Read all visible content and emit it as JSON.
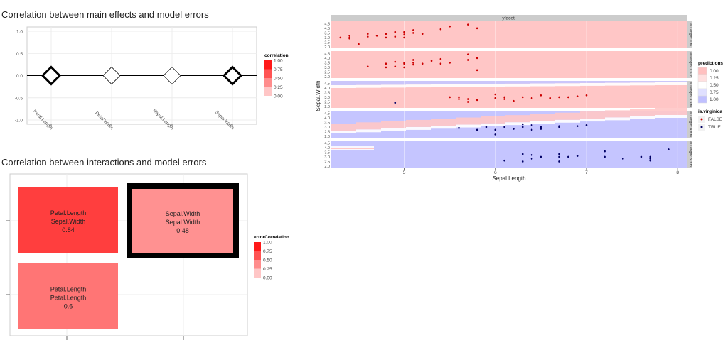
{
  "chart_data": [
    {
      "type": "scatter",
      "title": "Correlation between main effects and model errors",
      "categories": [
        "Petal.Length",
        "Petal.Width",
        "Sepal.Length",
        "Sepal.Width"
      ],
      "values": [
        0,
        0,
        0,
        0
      ],
      "correlation": [
        0.9,
        0.05,
        0.05,
        0.9
      ],
      "ylim": [
        -1,
        1
      ],
      "yticks": [
        "1.0",
        "0.5",
        "0.0",
        "-0.5",
        "-1.0"
      ],
      "legend": {
        "title": "correlation",
        "ticks": [
          "1.00",
          "0.75",
          "0.50",
          "0.25",
          "0.00"
        ],
        "placement": "right"
      }
    },
    {
      "type": "heatmap",
      "title": "Correlation between interactions and model errors",
      "cells": [
        {
          "line1": "Petal.Length",
          "line2": "Sepal.Width",
          "value": "0.84",
          "corr": 0.84,
          "highlight": false
        },
        {
          "line1": "Sepal.Width",
          "line2": "Sepal.Width",
          "value": "0.48",
          "corr": 0.48,
          "highlight": true
        },
        {
          "line1": "Petal.Length",
          "line2": "Petal.Length",
          "value": "0.6",
          "corr": 0.6,
          "highlight": false
        }
      ],
      "legend": {
        "title": "errorCorrelation",
        "ticks": [
          "1.00",
          "0.75",
          "0.50",
          "0.25",
          "0.00"
        ],
        "placement": "right"
      }
    },
    {
      "type": "scatter",
      "facet_title": "yfacet:",
      "xlabel": "Sepal.Length",
      "ylabel": "Sepal.Width",
      "xlim": [
        4.2,
        8.1
      ],
      "xticks": [
        "5",
        "6",
        "7",
        "8"
      ],
      "yticks": [
        "4.5",
        "4.0",
        "3.5",
        "3.0",
        "2.5",
        "2.0"
      ],
      "ylim": [
        2.0,
        4.6
      ],
      "strips": [
        "al.Length: 1 to",
        "al.Length: 1.5 to",
        "al.Length: 3.9 to",
        "al.Length: 4.8 to",
        "al.Length: 5.3 to"
      ],
      "legend_predictions": {
        "title": "predictions",
        "ticks": [
          "0.00",
          "0.25",
          "0.50",
          "0.75",
          "1.00"
        ]
      },
      "legend_points": {
        "title": "is.virginica",
        "items": [
          "FALSE",
          "TRUE"
        ]
      },
      "facets": [
        {
          "prediction": "low",
          "points": [
            [
              4.3,
              3.0
            ],
            [
              4.4,
              2.9
            ],
            [
              4.4,
              3.0
            ],
            [
              4.4,
              3.2
            ],
            [
              4.5,
              2.3
            ],
            [
              4.6,
              3.1
            ],
            [
              4.6,
              3.4
            ],
            [
              4.7,
              3.2
            ],
            [
              4.8,
              3.0
            ],
            [
              4.8,
              3.4
            ],
            [
              4.9,
              3.1
            ],
            [
              4.9,
              3.6
            ],
            [
              5.0,
              3.0
            ],
            [
              5.0,
              3.3
            ],
            [
              5.0,
              3.5
            ],
            [
              5.0,
              3.6
            ],
            [
              5.1,
              3.5
            ],
            [
              5.1,
              3.8
            ],
            [
              5.2,
              3.4
            ],
            [
              5.4,
              3.9
            ],
            [
              5.5,
              4.2
            ],
            [
              5.7,
              4.4
            ],
            [
              5.8,
              4.0
            ]
          ]
        },
        {
          "prediction": "low",
          "points": [
            [
              4.6,
              3.1
            ],
            [
              4.8,
              3.0
            ],
            [
              4.8,
              3.4
            ],
            [
              4.9,
              3.1
            ],
            [
              4.9,
              3.6
            ],
            [
              5.0,
              3.0
            ],
            [
              5.0,
              3.4
            ],
            [
              5.0,
              3.5
            ],
            [
              5.1,
              3.3
            ],
            [
              5.1,
              3.5
            ],
            [
              5.1,
              3.8
            ],
            [
              5.2,
              3.4
            ],
            [
              5.3,
              3.7
            ],
            [
              5.4,
              3.4
            ],
            [
              5.4,
              3.9
            ],
            [
              5.5,
              3.5
            ],
            [
              5.7,
              3.8
            ],
            [
              5.7,
              4.4
            ],
            [
              5.8,
              2.7
            ],
            [
              5.8,
              4.0
            ]
          ]
        },
        {
          "prediction": "mixed",
          "points": [
            [
              4.9,
              2.4
            ],
            [
              5.5,
              3.0
            ],
            [
              5.6,
              2.8
            ],
            [
              5.6,
              3.0
            ],
            [
              5.7,
              2.5
            ],
            [
              5.7,
              2.8
            ],
            [
              5.8,
              2.7
            ],
            [
              6.0,
              2.9
            ],
            [
              6.0,
              3.3
            ],
            [
              6.1,
              2.8
            ],
            [
              6.1,
              3.0
            ],
            [
              6.2,
              2.6
            ],
            [
              6.3,
              3.0
            ],
            [
              6.4,
              2.9
            ],
            [
              6.5,
              3.2
            ],
            [
              6.6,
              2.9
            ],
            [
              6.7,
              3.0
            ],
            [
              6.8,
              3.0
            ],
            [
              6.9,
              3.1
            ],
            [
              7.0,
              3.2
            ]
          ]
        },
        {
          "prediction": "mixed",
          "points": [
            [
              5.6,
              2.9
            ],
            [
              5.8,
              2.7
            ],
            [
              5.9,
              3.0
            ],
            [
              6.0,
              2.2
            ],
            [
              6.0,
              2.7
            ],
            [
              6.1,
              3.0
            ],
            [
              6.2,
              2.8
            ],
            [
              6.3,
              3.0
            ],
            [
              6.3,
              3.3
            ],
            [
              6.4,
              2.7
            ],
            [
              6.4,
              3.2
            ],
            [
              6.5,
              2.8
            ],
            [
              6.5,
              3.0
            ],
            [
              6.7,
              3.0
            ],
            [
              6.7,
              3.1
            ],
            [
              6.9,
              3.1
            ],
            [
              7.0,
              3.2
            ]
          ]
        },
        {
          "prediction": "high",
          "points": [
            [
              6.1,
              2.6
            ],
            [
              6.3,
              2.5
            ],
            [
              6.3,
              3.3
            ],
            [
              6.4,
              2.8
            ],
            [
              6.4,
              3.2
            ],
            [
              6.5,
              3.0
            ],
            [
              6.7,
              2.5
            ],
            [
              6.7,
              3.0
            ],
            [
              6.7,
              3.3
            ],
            [
              6.8,
              3.0
            ],
            [
              6.9,
              3.1
            ],
            [
              7.2,
              3.0
            ],
            [
              7.2,
              3.6
            ],
            [
              7.4,
              2.8
            ],
            [
              7.6,
              3.0
            ],
            [
              7.7,
              2.6
            ],
            [
              7.7,
              2.8
            ],
            [
              7.7,
              3.0
            ],
            [
              7.9,
              3.8
            ]
          ]
        }
      ]
    }
  ]
}
